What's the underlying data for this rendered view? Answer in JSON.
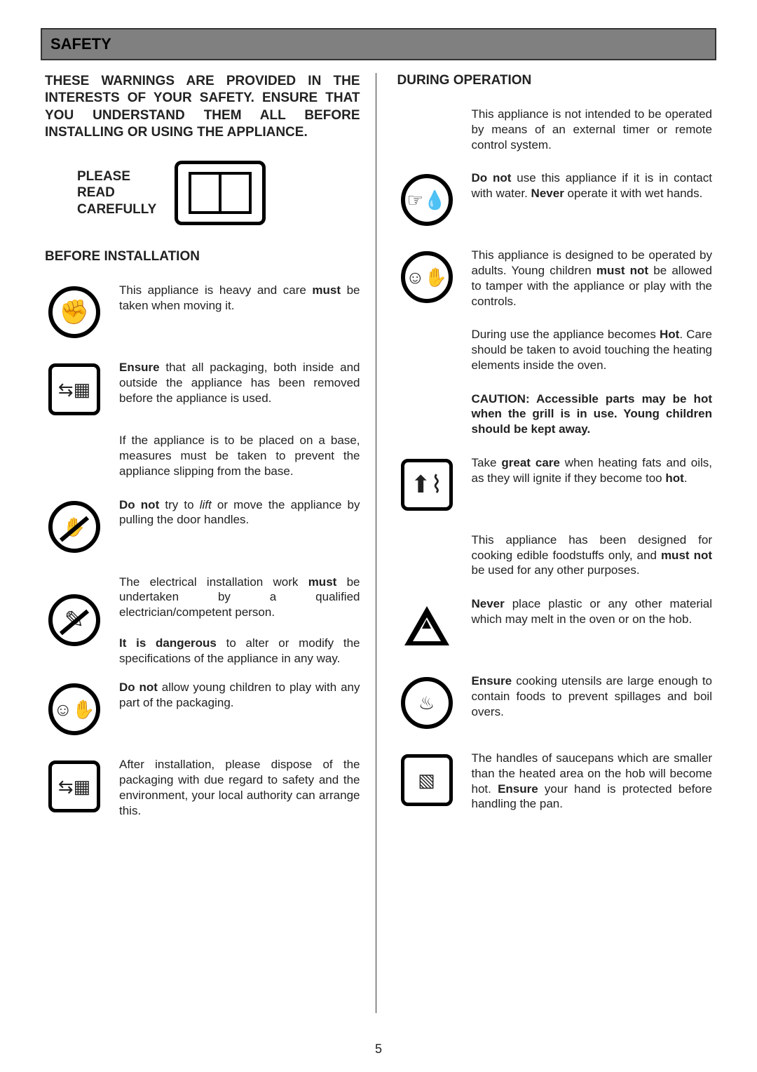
{
  "page_number": "5",
  "section_title": "SAFETY",
  "intro": "THESE WARNINGS ARE PROVIDED IN THE INTERESTS OF YOUR SAFETY. ENSURE THAT YOU UNDERSTAND THEM ALL BEFORE INSTALLING OR USING THE APPLIANCE.",
  "please_read": "PLEASE READ CAREFULLY",
  "left": {
    "heading": "BEFORE INSTALLATION",
    "items": [
      {
        "icon": "lift-icon",
        "html": "This appliance is heavy and care <b>must</b> be taken when moving it."
      },
      {
        "icon": "pack-icon",
        "html": "<b>Ensure</b> that all packaging, both inside and outside the appliance has been removed before the appliance is used."
      },
      {
        "icon": null,
        "html": "If the appliance is to be placed on a base, measures must be taken to prevent the appliance slipping from the base."
      },
      {
        "icon": "no-pull-icon",
        "html": "<b>Do not</b> try to <i>lift</i> or move the appliance by pulling the door handles."
      },
      {
        "icon": "tool-group",
        "html": "The electrical installation work <b>must</b> be undertaken by a qualified electrician/competent person."
      },
      {
        "icon": "tool-group-2",
        "html": "<b>It is dangerous</b> to alter or modify the specifications of the appliance in any way."
      },
      {
        "icon": "child-icon",
        "html": "<b>Do not</b> allow young children to play with any part of the packaging."
      },
      {
        "icon": "dispose-icon",
        "html": "After installation, please dispose of the packaging with due regard to safety and the environment, your local authority can arrange this."
      }
    ]
  },
  "right": {
    "heading": "DURING OPERATION",
    "items": [
      {
        "icon": null,
        "html": "This appliance is not intended to be operated by means of an external timer or remote control system."
      },
      {
        "icon": "wet-hand-icon",
        "html": "<b>Do not</b> use this appliance if it is in contact with water.  <b>Never</b> operate it with wet hands."
      },
      {
        "icon": "adult-icon",
        "html": "This appliance is designed to be operated by adults. Young children <b>must not</b> be allowed to tamper with the appliance or play with the controls."
      },
      {
        "icon": null,
        "html": "During use the appliance becomes <b>Hot</b>.  Care should be taken to avoid touching the heating elements inside the oven."
      },
      {
        "icon": null,
        "html": "<b>CAUTION: Accessible parts may be hot when the grill is in use. Young children should be kept away.</b>"
      },
      {
        "icon": "fat-icon",
        "html": "Take <b>great care</b> when heating fats and oils, as they will ignite if they become too <b>hot</b>."
      },
      {
        "icon": null,
        "html": "This appliance has been designed for cooking edible foodstuffs only, and <b>must not</b> be used for any other purposes."
      },
      {
        "icon": "fire-icon",
        "html": "<b>Never</b> place plastic or any other material which may melt in the oven or on the hob."
      },
      {
        "icon": "spill-icon",
        "html": "<b>Ensure</b> cooking utensils are large enough to contain foods to prevent spillages and boil overs."
      },
      {
        "icon": "pan-icon",
        "html": "The handles of saucepans which are smaller than the heated area on the hob will become hot.  <b>Ensure</b> your hand is protected before handling the pan."
      }
    ]
  }
}
